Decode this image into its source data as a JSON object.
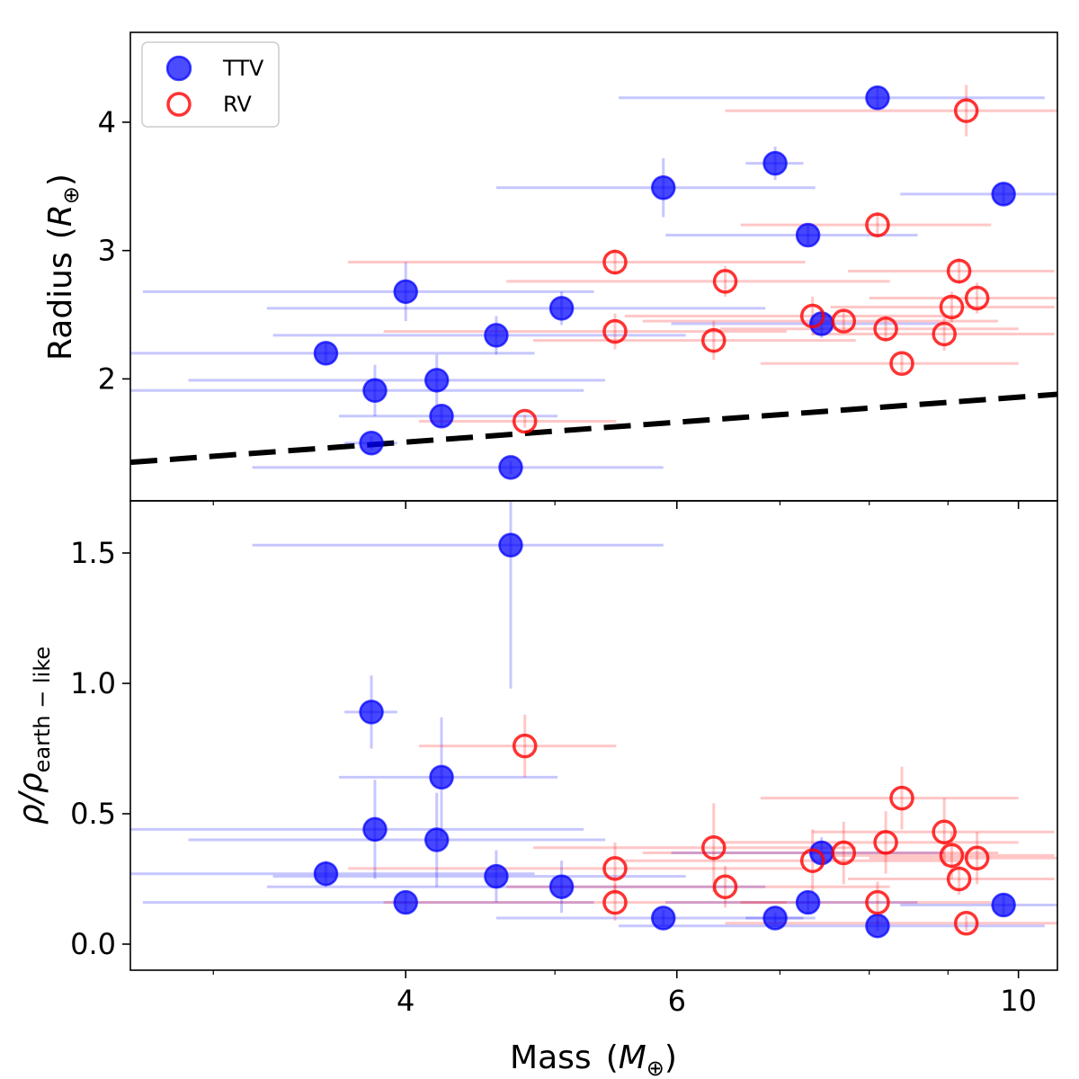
{
  "chart_data": {
    "type": "scatter",
    "x_scale": "log",
    "xlabel": "Mass",
    "xlabel_unit": "M",
    "x_ticks": [
      4,
      6,
      10
    ],
    "xlim": [
      2.65,
      10.6
    ],
    "legend": {
      "placement": "top-left",
      "entries": [
        {
          "label": "TTV",
          "marker": "filled-circle",
          "color": "#0000ff"
        },
        {
          "label": "RV",
          "marker": "open-circle",
          "color": "#ff0000"
        }
      ]
    },
    "colors": {
      "ttv": "#0000ff",
      "rv": "#ff0000",
      "bound": "#000000"
    },
    "top_panel": {
      "ylabel": "Radius",
      "ylabel_unit": "R",
      "ylim": [
        1.05,
        4.7
      ],
      "y_ticks": [
        2,
        3,
        4
      ],
      "earth_like_line": [
        [
          2.65,
          1.35
        ],
        [
          10.6,
          1.88
        ]
      ],
      "series": [
        {
          "name": "TTV",
          "points": [
            {
              "m": 3.55,
              "mlo": 1.0,
              "mhi": 1.3,
              "r": 2.2,
              "rlo": 0.08,
              "rhi": 0.08
            },
            {
              "m": 3.8,
              "mlo": 0.15,
              "mhi": 0.15,
              "r": 1.5,
              "rlo": 0.05,
              "rhi": 0.05
            },
            {
              "m": 3.82,
              "mlo": 1.4,
              "mhi": 1.4,
              "r": 1.91,
              "rlo": 0.2,
              "rhi": 0.2
            },
            {
              "m": 4.0,
              "mlo": 1.3,
              "mhi": 1.3,
              "r": 2.68,
              "rlo": 0.23,
              "rhi": 0.23
            },
            {
              "m": 4.19,
              "mlo": 1.3,
              "mhi": 1.2,
              "r": 1.99,
              "rlo": 0.2,
              "rhi": 0.2
            },
            {
              "m": 4.22,
              "mlo": 0.6,
              "mhi": 0.8,
              "r": 1.71,
              "rlo": 0.08,
              "rhi": 0.08
            },
            {
              "m": 4.58,
              "mlo": 1.3,
              "mhi": 1.5,
              "r": 2.34,
              "rlo": 0.15,
              "rhi": 0.15
            },
            {
              "m": 4.68,
              "mlo": 1.5,
              "mhi": 1.2,
              "r": 1.31,
              "rlo": 0.05,
              "rhi": 0.05
            },
            {
              "m": 5.05,
              "mlo": 1.8,
              "mhi": 1.8,
              "r": 2.55,
              "rlo": 0.13,
              "rhi": 0.13
            },
            {
              "m": 5.88,
              "mlo": 1.3,
              "mhi": 1.5,
              "r": 3.49,
              "rlo": 0.23,
              "rhi": 0.23
            },
            {
              "m": 6.95,
              "mlo": 0.3,
              "mhi": 0.3,
              "r": 3.68,
              "rlo": 0.13,
              "rhi": 0.13
            },
            {
              "m": 7.3,
              "mlo": 1.4,
              "mhi": 1.3,
              "r": 3.12,
              "rlo": 0.07,
              "rhi": 0.07
            },
            {
              "m": 7.45,
              "mlo": 1.5,
              "mhi": 1.5,
              "r": 2.43,
              "rlo": 0.11,
              "rhi": 0.11
            },
            {
              "m": 8.1,
              "mlo": 2.6,
              "mhi": 2.3,
              "r": 4.19,
              "rlo": 0.09,
              "rhi": 0.09
            },
            {
              "m": 9.78,
              "mlo": 1.4,
              "mhi": 1.4,
              "r": 3.44,
              "rlo": 0.08,
              "rhi": 0.08
            }
          ]
        },
        {
          "name": "RV",
          "points": [
            {
              "m": 4.78,
              "mlo": 0.7,
              "mhi": 0.7,
              "r": 1.67,
              "rlo": 0.05,
              "rhi": 0.05
            },
            {
              "m": 5.47,
              "mlo": 1.8,
              "mhi": 1.8,
              "r": 2.91,
              "rlo": 0.1,
              "rhi": 0.1
            },
            {
              "m": 5.47,
              "mlo": 1.6,
              "mhi": 1.6,
              "r": 2.37,
              "rlo": 0.14,
              "rhi": 0.14
            },
            {
              "m": 6.34,
              "mlo": 1.5,
              "mhi": 1.5,
              "r": 2.3,
              "rlo": 0.15,
              "rhi": 0.15
            },
            {
              "m": 6.45,
              "mlo": 1.8,
              "mhi": 1.8,
              "r": 2.76,
              "rlo": 0.12,
              "rhi": 0.12
            },
            {
              "m": 7.35,
              "mlo": 1.8,
              "mhi": 1.8,
              "r": 2.49,
              "rlo": 0.15,
              "rhi": 0.15
            },
            {
              "m": 7.7,
              "mlo": 2.0,
              "mhi": 2.0,
              "r": 2.45,
              "rlo": 0.08,
              "rhi": 0.08
            },
            {
              "m": 8.1,
              "mlo": 1.5,
              "mhi": 1.5,
              "r": 3.2,
              "rlo": 0.1,
              "rhi": 0.1
            },
            {
              "m": 8.2,
              "mlo": 1.8,
              "mhi": 1.8,
              "r": 2.39,
              "rlo": 0.1,
              "rhi": 0.1
            },
            {
              "m": 8.4,
              "mlo": 1.6,
              "mhi": 1.6,
              "r": 2.12,
              "rlo": 0.07,
              "rhi": 0.07
            },
            {
              "m": 8.95,
              "mlo": 1.6,
              "mhi": 1.6,
              "r": 2.35,
              "rlo": 0.13,
              "rhi": 0.13
            },
            {
              "m": 9.05,
              "mlo": 1.5,
              "mhi": 1.5,
              "r": 2.56,
              "rlo": 0.12,
              "rhi": 0.12
            },
            {
              "m": 9.15,
              "mlo": 1.4,
              "mhi": 1.4,
              "r": 2.84,
              "rlo": 0.1,
              "rhi": 0.1
            },
            {
              "m": 9.4,
              "mlo": 1.4,
              "mhi": 1.4,
              "r": 2.63,
              "rlo": 0.12,
              "rhi": 0.12
            },
            {
              "m": 9.25,
              "mlo": 2.8,
              "mhi": 2.8,
              "r": 4.09,
              "rlo": 0.2,
              "rhi": 0.2
            }
          ]
        }
      ]
    },
    "bottom_panel": {
      "ylabel": "ρ/ρ",
      "ylabel_sub": "earth − like",
      "ylim": [
        -0.1,
        1.7
      ],
      "y_ticks": [
        0.0,
        0.5,
        1.0,
        1.5
      ],
      "y_tick_labels": [
        "0.0",
        "0.5",
        "1.0",
        "1.5"
      ],
      "series": [
        {
          "name": "TTV",
          "points": [
            {
              "m": 3.55,
              "mlo": 1.0,
              "mhi": 1.3,
              "d": 0.27,
              "dlo": 0.05,
              "dhi": 0.05
            },
            {
              "m": 3.8,
              "mlo": 0.15,
              "mhi": 0.15,
              "d": 0.89,
              "dlo": 0.14,
              "dhi": 0.14
            },
            {
              "m": 3.82,
              "mlo": 1.4,
              "mhi": 1.4,
              "d": 0.44,
              "dlo": 0.19,
              "dhi": 0.19
            },
            {
              "m": 4.0,
              "mlo": 1.3,
              "mhi": 1.3,
              "d": 0.16,
              "dlo": 0.04,
              "dhi": 0.04
            },
            {
              "m": 4.19,
              "mlo": 1.3,
              "mhi": 1.2,
              "d": 0.4,
              "dlo": 0.18,
              "dhi": 0.18
            },
            {
              "m": 4.22,
              "mlo": 0.6,
              "mhi": 0.8,
              "d": 0.64,
              "dlo": 0.23,
              "dhi": 0.23
            },
            {
              "m": 4.58,
              "mlo": 1.3,
              "mhi": 1.5,
              "d": 0.26,
              "dlo": 0.1,
              "dhi": 0.1
            },
            {
              "m": 4.68,
              "mlo": 1.5,
              "mhi": 1.2,
              "d": 1.53,
              "dlo": 0.55,
              "dhi": 0.55
            },
            {
              "m": 5.05,
              "mlo": 1.8,
              "mhi": 1.8,
              "d": 0.22,
              "dlo": 0.1,
              "dhi": 0.1
            },
            {
              "m": 5.88,
              "mlo": 1.3,
              "mhi": 1.5,
              "d": 0.1,
              "dlo": 0.03,
              "dhi": 0.03
            },
            {
              "m": 6.95,
              "mlo": 0.3,
              "mhi": 0.3,
              "d": 0.1,
              "dlo": 0.02,
              "dhi": 0.02
            },
            {
              "m": 7.3,
              "mlo": 1.4,
              "mhi": 1.3,
              "d": 0.16,
              "dlo": 0.04,
              "dhi": 0.04
            },
            {
              "m": 7.45,
              "mlo": 1.5,
              "mhi": 1.5,
              "d": 0.35,
              "dlo": 0.06,
              "dhi": 0.06
            },
            {
              "m": 8.1,
              "mlo": 2.6,
              "mhi": 2.3,
              "d": 0.07,
              "dlo": 0.02,
              "dhi": 0.02
            },
            {
              "m": 9.78,
              "mlo": 1.4,
              "mhi": 1.4,
              "d": 0.15,
              "dlo": 0.04,
              "dhi": 0.04
            }
          ]
        },
        {
          "name": "RV",
          "points": [
            {
              "m": 4.78,
              "mlo": 0.7,
              "mhi": 0.7,
              "d": 0.76,
              "dlo": 0.12,
              "dhi": 0.12
            },
            {
              "m": 5.47,
              "mlo": 1.8,
              "mhi": 1.8,
              "d": 0.29,
              "dlo": 0.1,
              "dhi": 0.1
            },
            {
              "m": 5.47,
              "mlo": 1.6,
              "mhi": 1.6,
              "d": 0.16,
              "dlo": 0.07,
              "dhi": 0.07
            },
            {
              "m": 6.34,
              "mlo": 1.5,
              "mhi": 1.5,
              "d": 0.37,
              "dlo": 0.17,
              "dhi": 0.17
            },
            {
              "m": 6.45,
              "mlo": 1.8,
              "mhi": 1.8,
              "d": 0.22,
              "dlo": 0.08,
              "dhi": 0.08
            },
            {
              "m": 7.35,
              "mlo": 1.8,
              "mhi": 1.8,
              "d": 0.32,
              "dlo": 0.12,
              "dhi": 0.12
            },
            {
              "m": 7.7,
              "mlo": 2.0,
              "mhi": 2.0,
              "d": 0.35,
              "dlo": 0.12,
              "dhi": 0.12
            },
            {
              "m": 8.1,
              "mlo": 1.5,
              "mhi": 1.5,
              "d": 0.16,
              "dlo": 0.08,
              "dhi": 0.08
            },
            {
              "m": 8.2,
              "mlo": 1.8,
              "mhi": 1.8,
              "d": 0.39,
              "dlo": 0.12,
              "dhi": 0.12
            },
            {
              "m": 8.4,
              "mlo": 1.6,
              "mhi": 1.6,
              "d": 0.56,
              "dlo": 0.12,
              "dhi": 0.12
            },
            {
              "m": 8.95,
              "mlo": 1.6,
              "mhi": 1.6,
              "d": 0.43,
              "dlo": 0.13,
              "dhi": 0.13
            },
            {
              "m": 9.05,
              "mlo": 1.5,
              "mhi": 1.5,
              "d": 0.34,
              "dlo": 0.09,
              "dhi": 0.09
            },
            {
              "m": 9.15,
              "mlo": 1.4,
              "mhi": 1.4,
              "d": 0.25,
              "dlo": 0.06,
              "dhi": 0.06
            },
            {
              "m": 9.4,
              "mlo": 1.4,
              "mhi": 1.4,
              "d": 0.33,
              "dlo": 0.1,
              "dhi": 0.1
            },
            {
              "m": 9.25,
              "mlo": 2.8,
              "mhi": 2.8,
              "d": 0.08,
              "dlo": 0.03,
              "dhi": 0.03
            }
          ]
        }
      ]
    }
  }
}
